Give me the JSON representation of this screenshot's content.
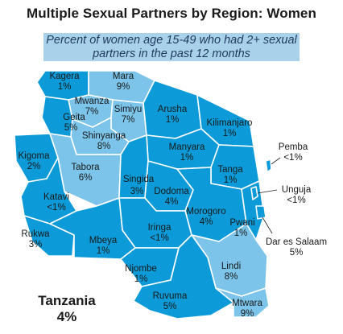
{
  "title": "Multiple Sexual Partners by Region: Women",
  "subtitle": [
    "Percent of women age 15-49 who had 2+ sexual",
    "partners in the past 12 months"
  ],
  "national": {
    "name": "Tanzania",
    "value": "4%"
  },
  "colors": {
    "low": "#0d9ad8",
    "high": "#7cc4e9",
    "border": "#ffffff",
    "subtitle_bg": "#a9d2ea"
  },
  "chart_data": {
    "type": "choropleth",
    "regions": [
      {
        "name": "Kagera",
        "value": "1%"
      },
      {
        "name": "Mara",
        "value": "9%"
      },
      {
        "name": "Mwanza",
        "value": "7%"
      },
      {
        "name": "Simiyu",
        "value": "7%"
      },
      {
        "name": "Geita",
        "value": "5%"
      },
      {
        "name": "Arusha",
        "value": "1%"
      },
      {
        "name": "Kilimanjaro",
        "value": "1%"
      },
      {
        "name": "Shinyanga",
        "value": "8%"
      },
      {
        "name": "Kigoma",
        "value": "2%"
      },
      {
        "name": "Tabora",
        "value": "6%"
      },
      {
        "name": "Manyara",
        "value": "1%"
      },
      {
        "name": "Pemba",
        "value": "<1%"
      },
      {
        "name": "Tanga",
        "value": "1%"
      },
      {
        "name": "Singida",
        "value": "3%"
      },
      {
        "name": "Dodoma",
        "value": "4%"
      },
      {
        "name": "Unguja",
        "value": "<1%"
      },
      {
        "name": "Katavi",
        "value": "<1%"
      },
      {
        "name": "Morogoro",
        "value": "4%"
      },
      {
        "name": "Pwani",
        "value": "1%"
      },
      {
        "name": "Iringa",
        "value": "<1%"
      },
      {
        "name": "Dar es Salaam",
        "value": "5%"
      },
      {
        "name": "Rukwa",
        "value": "3%"
      },
      {
        "name": "Mbeya",
        "value": "1%"
      },
      {
        "name": "Njombe",
        "value": "1%"
      },
      {
        "name": "Lindi",
        "value": "8%"
      },
      {
        "name": "Ruvuma",
        "value": "5%"
      },
      {
        "name": "Mtwara",
        "value": "9%"
      }
    ]
  }
}
